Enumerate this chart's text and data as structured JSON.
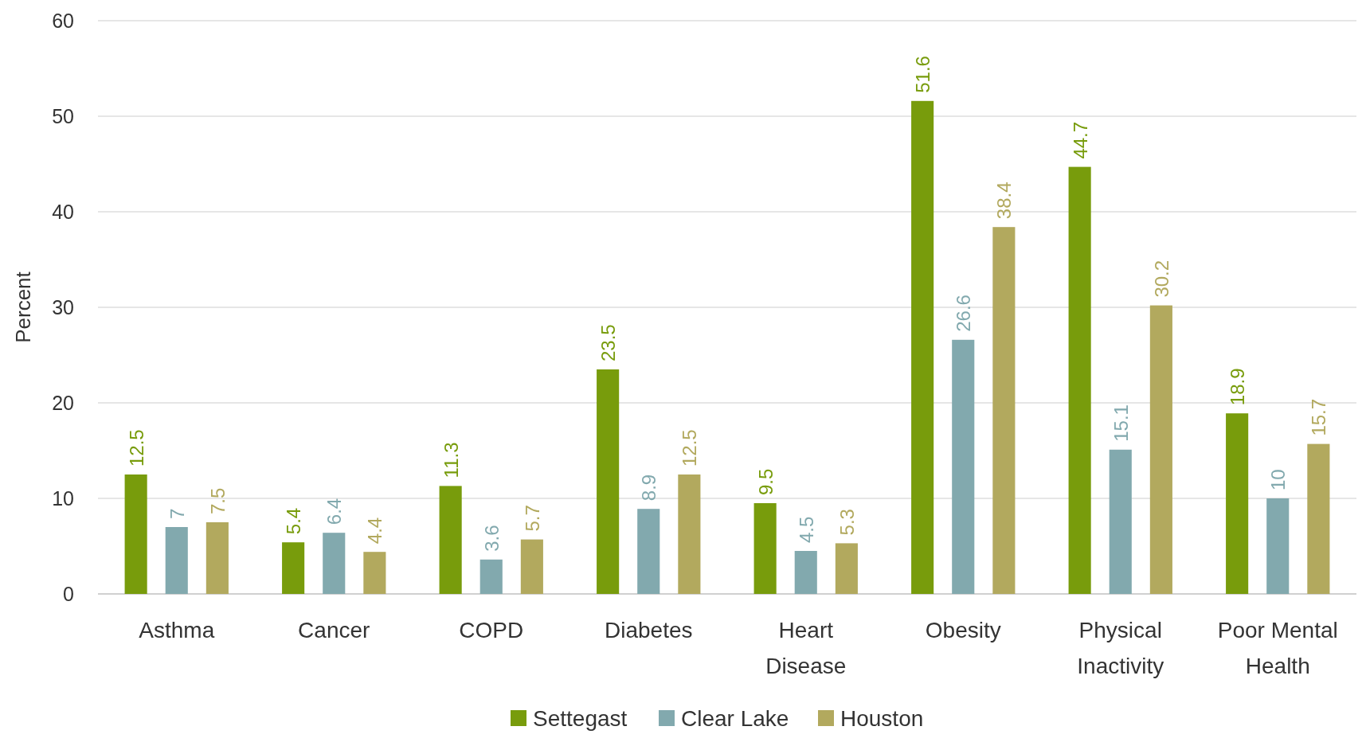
{
  "chart_data": {
    "type": "bar",
    "ylabel": "Percent",
    "categories": [
      "Asthma",
      "Cancer",
      "COPD",
      "Diabetes",
      "Heart Disease",
      "Obesity",
      "Physical Inactivity",
      "Poor Mental Health"
    ],
    "series": [
      {
        "name": "Settegast",
        "color": "#789c0c",
        "values": [
          12.5,
          5.4,
          11.3,
          23.5,
          9.5,
          51.6,
          44.7,
          18.9
        ]
      },
      {
        "name": "Clear Lake",
        "color": "#82a9ae",
        "values": [
          7,
          6.4,
          3.6,
          8.9,
          4.5,
          26.6,
          15.1,
          10
        ]
      },
      {
        "name": "Houston",
        "color": "#b2a95e",
        "values": [
          7.5,
          4.4,
          5.7,
          12.5,
          5.3,
          38.4,
          30.2,
          15.7
        ]
      }
    ],
    "ylim": [
      0,
      60
    ],
    "yticks": [
      0,
      10,
      20,
      30,
      40,
      50,
      60
    ],
    "grid": "y",
    "legend": "bottom",
    "data_labels": true
  }
}
